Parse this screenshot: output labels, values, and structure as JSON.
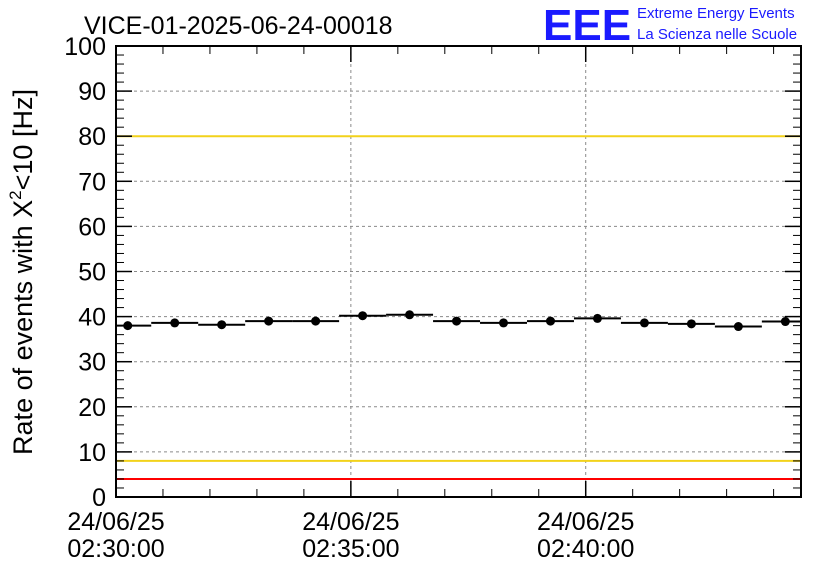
{
  "chart_data": {
    "type": "scatter",
    "title": "VICE-01-2025-06-24-00018",
    "ylabel": {
      "prefix": "Rate of events with ",
      "chi": "X",
      "sup": "2",
      "suffix": "<10 [Hz]"
    },
    "xlabel": "",
    "ylim": [
      0,
      100
    ],
    "xlim": [
      0,
      875
    ],
    "y_ticks": [
      "0",
      "10",
      "20",
      "30",
      "40",
      "50",
      "60",
      "70",
      "80",
      "90",
      "100"
    ],
    "x_ticks": [
      {
        "t": 0,
        "date": "24/06/25",
        "time": "02:30:00"
      },
      {
        "t": 300,
        "date": "24/06/25",
        "time": "02:35:00"
      },
      {
        "t": 600,
        "date": "24/06/25",
        "time": "02:40:00"
      }
    ],
    "grid": true,
    "bin_width_s": 60,
    "series": [
      {
        "t": [
          15,
          75,
          135,
          195,
          255,
          315,
          375,
          435,
          495,
          555,
          615,
          675,
          735,
          795,
          855
        ],
        "values": [
          38.0,
          38.6,
          38.2,
          39.0,
          39.0,
          40.2,
          40.4,
          39.0,
          38.6,
          39.0,
          39.6,
          38.6,
          38.4,
          37.8,
          38.9
        ],
        "color": "#000000"
      }
    ],
    "reference_lines": [
      {
        "value": 80,
        "color": "#f2d21b"
      },
      {
        "value": 8,
        "color": "#f2d21b"
      },
      {
        "value": 100,
        "color": "#ff0000"
      },
      {
        "value": 4,
        "color": "#ff0000"
      }
    ]
  },
  "logo": {
    "mark": "EEE",
    "line1": "Extreme Energy Events",
    "line2": "La Scienza nelle Scuole",
    "color": "#1a1aff"
  }
}
